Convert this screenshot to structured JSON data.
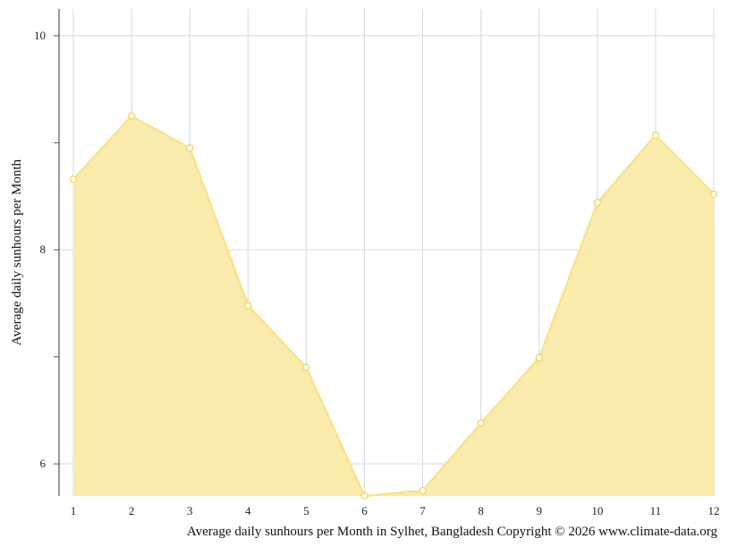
{
  "chart_data": {
    "type": "area",
    "x": [
      1,
      2,
      3,
      4,
      5,
      6,
      7,
      8,
      9,
      10,
      11,
      12
    ],
    "series": [
      {
        "values": [
          8.66,
          9.25,
          8.95,
          7.48,
          6.9,
          5.7,
          5.75,
          6.38,
          6.99,
          8.44,
          9.07,
          8.52
        ]
      }
    ],
    "xlabel": "",
    "ylabel": "Average daily sunhours per Month",
    "caption": "Average daily sunhours per Month in Sylhet, Bangladesh Copyright © 2026 www.climate-data.org",
    "xlim": [
      1,
      12
    ],
    "ylim": [
      5.7,
      10.25
    ],
    "y_ticks_labeled": [
      6,
      8,
      10
    ],
    "y_ticks_minor": [
      7,
      9
    ],
    "grid": true,
    "colors": {
      "fill": "#f9eaa7",
      "line": "#f7e48a",
      "marker_fill": "#ffffff",
      "marker_stroke": "#f2d74e",
      "grid": "#d8d8d8",
      "axis": "#555555"
    }
  }
}
